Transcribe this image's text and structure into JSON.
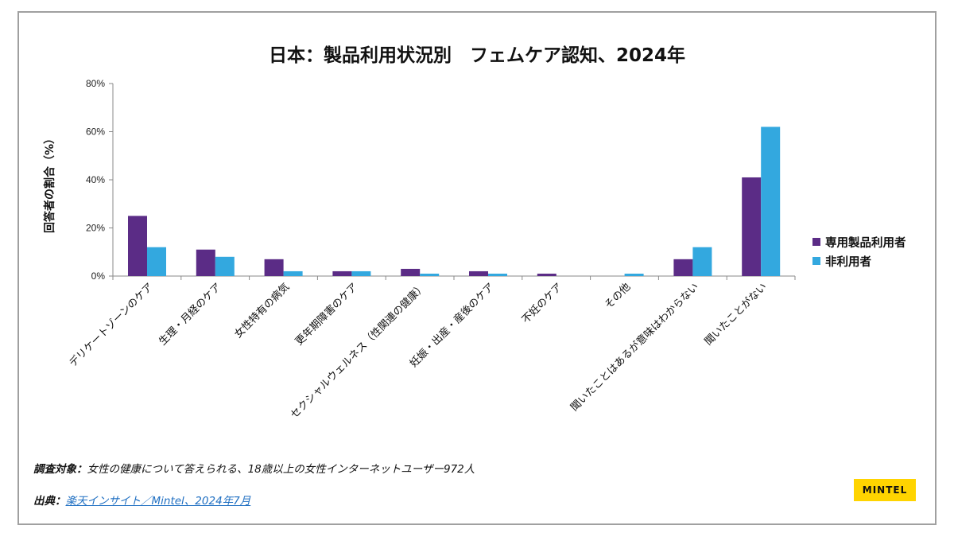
{
  "chart_data": {
    "type": "bar",
    "title": "日本：製品利用状況別　フェムケア認知、2024年",
    "xlabel": "",
    "ylabel": "回答者の割合（%）",
    "ylim": [
      0,
      80
    ],
    "yticks": [
      "0%",
      "20%",
      "40%",
      "60%",
      "80%"
    ],
    "ytick_values": [
      0,
      20,
      40,
      60,
      80
    ],
    "grid": false,
    "legend_position": "right",
    "categories": [
      "デリケートゾーンのケア",
      "生理・月経のケア",
      "女性特有の病気",
      "更年期障害のケア",
      "セクシャルウェルネス（性関連の健康）",
      "妊娠・出産・産後のケア",
      "不妊のケア",
      "その他",
      "聞いたことはあるが意味はわからない",
      "聞いたことがない"
    ],
    "series": [
      {
        "name": "専用製品利用者",
        "color": "#5b2c86",
        "values": [
          25,
          11,
          7,
          2,
          3,
          2,
          1,
          0,
          7,
          41
        ]
      },
      {
        "name": "非利用者",
        "color": "#33a8df",
        "values": [
          12,
          8,
          2,
          2,
          1,
          1,
          0,
          1,
          12,
          62
        ]
      }
    ]
  },
  "footer": {
    "note_label": "調査対象：",
    "note_text": "女性の健康について答えられる、18歳以上の女性インターネットユーザー972人",
    "source_label": "出典：",
    "source_link": "楽天インサイト／Mintel、2024年7月"
  },
  "brand": {
    "logo_text": "MINTEL",
    "logo_color": "#ffd400"
  }
}
